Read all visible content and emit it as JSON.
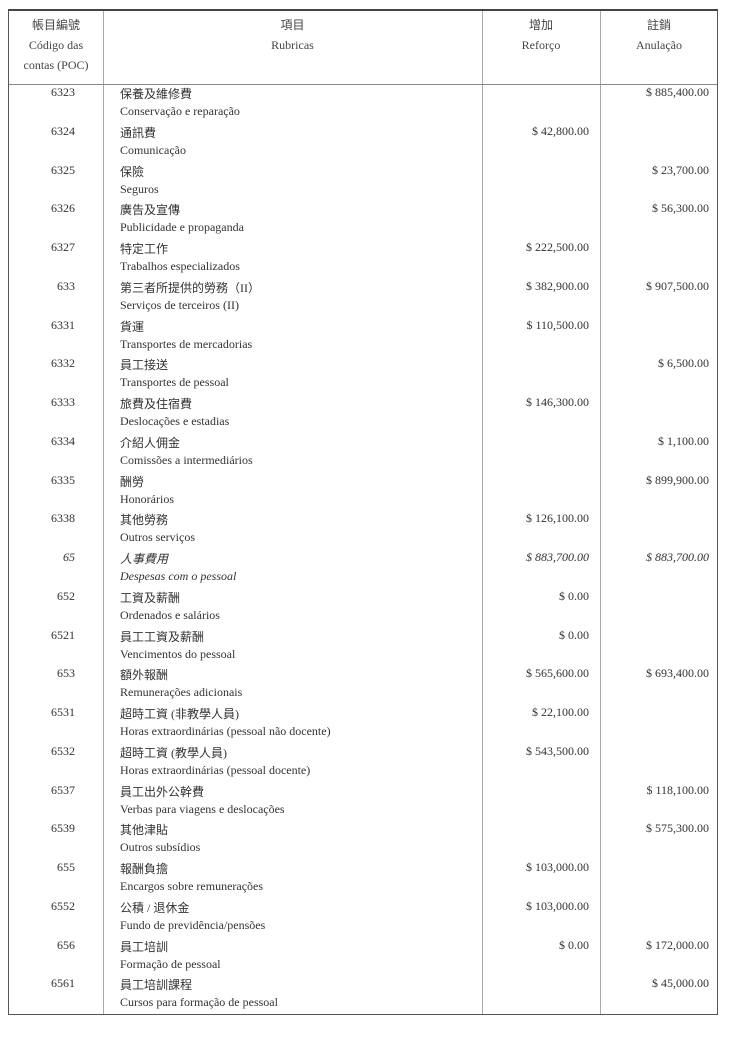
{
  "header": {
    "code_cn": "帳目編號",
    "code_pt1": "Código das",
    "code_pt2": "contas (POC)",
    "item_cn": "項目",
    "item_pt": "Rubricas",
    "inc_cn": "增加",
    "inc_pt": "Reforço",
    "dec_cn": "註銷",
    "dec_pt": "Anulação"
  },
  "rows": [
    {
      "code": "6323",
      "cn": "保養及維修費",
      "pt": "Conservação e reparação",
      "inc": "",
      "dec": "$ 885,400.00"
    },
    {
      "code": "6324",
      "cn": "通訊費",
      "pt": "Comunicação",
      "inc": "$ 42,800.00",
      "dec": ""
    },
    {
      "code": "6325",
      "cn": "保險",
      "pt": "Seguros",
      "inc": "",
      "dec": "$ 23,700.00"
    },
    {
      "code": "6326",
      "cn": "廣告及宣傳",
      "pt": "Publicidade e propaganda",
      "inc": "",
      "dec": "$ 56,300.00"
    },
    {
      "code": "6327",
      "cn": "特定工作",
      "pt": "Trabalhos especializados",
      "inc": "$ 222,500.00",
      "dec": ""
    },
    {
      "code": "633",
      "cn": "第三者所提供的勞務（II）",
      "pt": "Serviços de terceiros (II)",
      "inc": "$ 382,900.00",
      "dec": "$ 907,500.00"
    },
    {
      "code": "6331",
      "cn": "貨運",
      "pt": "Transportes de mercadorias",
      "inc": "$ 110,500.00",
      "dec": ""
    },
    {
      "code": "6332",
      "cn": "員工接送",
      "pt": "Transportes de pessoal",
      "inc": "",
      "dec": "$ 6,500.00"
    },
    {
      "code": "6333",
      "cn": "旅費及住宿費",
      "pt": "Deslocações e estadias",
      "inc": "$ 146,300.00",
      "dec": ""
    },
    {
      "code": "6334",
      "cn": "介紹人佣金",
      "pt": "Comissões a intermediários",
      "inc": "",
      "dec": "$ 1,100.00"
    },
    {
      "code": "6335",
      "cn": "酬勞",
      "pt": "Honorários",
      "inc": "",
      "dec": "$ 899,900.00"
    },
    {
      "code": "6338",
      "cn": "其他勞務",
      "pt": "Outros serviços",
      "inc": "$ 126,100.00",
      "dec": ""
    },
    {
      "code": "65",
      "cn": "人事費用",
      "pt": "Despesas com o pessoal",
      "inc": "$ 883,700.00",
      "dec": "$ 883,700.00",
      "italic": true
    },
    {
      "code": "652",
      "cn": "工資及薪酬",
      "pt": "Ordenados e salários",
      "inc": "$ 0.00",
      "dec": ""
    },
    {
      "code": "6521",
      "cn": "員工工資及薪酬",
      "pt": "Vencimentos do pessoal",
      "inc": "$ 0.00",
      "dec": ""
    },
    {
      "code": "653",
      "cn": "額外報酬",
      "pt": "Remunerações adicionais",
      "inc": "$ 565,600.00",
      "dec": "$ 693,400.00"
    },
    {
      "code": "6531",
      "cn": "超時工資 (非教學人員)",
      "pt": "Horas extraordinárias (pessoal não docente)",
      "inc": "$ 22,100.00",
      "dec": ""
    },
    {
      "code": "6532",
      "cn": "超時工資 (教學人員)",
      "pt": "Horas extraordinárias (pessoal docente)",
      "inc": "$ 543,500.00",
      "dec": ""
    },
    {
      "code": "6537",
      "cn": "員工出外公幹費",
      "pt": "Verbas para viagens e deslocações",
      "inc": "",
      "dec": "$ 118,100.00"
    },
    {
      "code": "6539",
      "cn": "其他津貼",
      "pt": "Outros subsídios",
      "inc": "",
      "dec": "$ 575,300.00"
    },
    {
      "code": "655",
      "cn": "報酬負擔",
      "pt": "Encargos sobre remunerações",
      "inc": "$ 103,000.00",
      "dec": ""
    },
    {
      "code": "6552",
      "cn": "公積 / 退休金",
      "pt": "Fundo de previdência/pensões",
      "inc": "$ 103,000.00",
      "dec": ""
    },
    {
      "code": "656",
      "cn": "員工培訓",
      "pt": "Formação de pessoal",
      "inc": "$ 0.00",
      "dec": "$ 172,000.00"
    },
    {
      "code": "6561",
      "cn": "員工培訓課程",
      "pt": "Cursos para formação de pessoal",
      "inc": "",
      "dec": "$ 45,000.00"
    }
  ]
}
